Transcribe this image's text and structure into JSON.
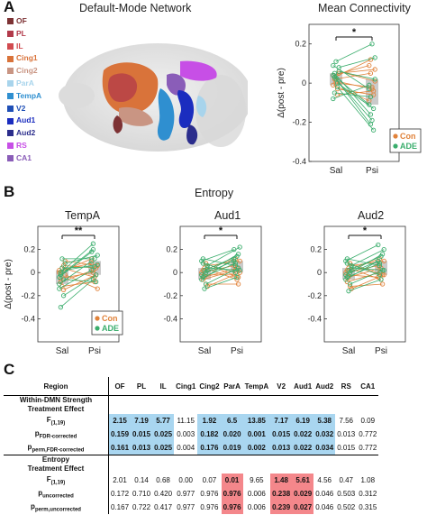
{
  "panels": {
    "A": "A",
    "B": "B",
    "C": "C"
  },
  "dmn": {
    "title": "Default-Mode Network",
    "regions": [
      {
        "label": "OF",
        "color": "#7d3234"
      },
      {
        "label": "PL",
        "color": "#b23a4a"
      },
      {
        "label": "IL",
        "color": "#d14a4f"
      },
      {
        "label": "Cing1",
        "color": "#d9733a"
      },
      {
        "label": "Cing2",
        "color": "#c99583"
      },
      {
        "label": "ParA",
        "color": "#a8d4ec"
      },
      {
        "label": "TempA",
        "color": "#2f8fd0"
      },
      {
        "label": "V2",
        "color": "#1f4fb6"
      },
      {
        "label": "Aud1",
        "color": "#1b2dbf"
      },
      {
        "label": "Aud2",
        "color": "#2b2d8c"
      },
      {
        "label": "RS",
        "color": "#c74fe6"
      },
      {
        "label": "CA1",
        "color": "#8a5db8"
      }
    ]
  },
  "legend_con": "Con",
  "legend_ade": "ADE",
  "colors": {
    "con": "#e0823a",
    "ade": "#3aad6c",
    "box": "#bdbdbd"
  },
  "entropy_title": "Entropy",
  "chart_data": [
    {
      "type": "scatter",
      "title": "Mean Connectivity",
      "ylabel": "Δ(post - pre)",
      "categories": [
        "Sal",
        "Psi"
      ],
      "ylim": [
        -0.4,
        0.3
      ],
      "yticks": [
        "0.2",
        "0",
        "-0.2",
        "-0.4"
      ],
      "significance": "*",
      "series": [
        {
          "name": "Con",
          "pairs": [
            [
              0.04,
              0.09
            ],
            [
              0.02,
              0.05
            ],
            [
              0.0,
              -0.02
            ],
            [
              -0.03,
              -0.06
            ],
            [
              0.06,
              0.01
            ],
            [
              -0.01,
              -0.09
            ],
            [
              0.03,
              0.12
            ],
            [
              0.01,
              -0.03
            ],
            [
              -0.06,
              -0.04
            ],
            [
              0.05,
              0.07
            ]
          ]
        },
        {
          "name": "ADE",
          "pairs": [
            [
              0.09,
              -0.03
            ],
            [
              0.05,
              -0.16
            ],
            [
              0.02,
              -0.19
            ],
            [
              -0.02,
              -0.24
            ],
            [
              0.08,
              0.13
            ],
            [
              0.04,
              -0.11
            ],
            [
              -0.05,
              -0.07
            ],
            [
              0.11,
              0.2
            ],
            [
              0.0,
              -0.13
            ],
            [
              0.06,
              0.02
            ],
            [
              -0.08,
              -0.01
            ],
            [
              0.03,
              -0.21
            ]
          ]
        }
      ]
    },
    {
      "type": "scatter",
      "title": "TempA",
      "ylabel": "Δ(post - pre)",
      "categories": [
        "Sal",
        "Psi"
      ],
      "ylim": [
        -0.6,
        0.4
      ],
      "yticks": [
        "0.2",
        "0",
        "-0.2",
        "-0.4"
      ],
      "significance": "**",
      "series": [
        {
          "name": "Con",
          "pairs": [
            [
              0.02,
              0.08
            ],
            [
              -0.05,
              0.0
            ],
            [
              -0.12,
              -0.08
            ],
            [
              0.06,
              0.04
            ],
            [
              -0.02,
              -0.14
            ],
            [
              0.0,
              0.12
            ],
            [
              -0.08,
              0.02
            ],
            [
              0.04,
              -0.04
            ],
            [
              -0.15,
              -0.02
            ],
            [
              0.1,
              0.06
            ]
          ]
        },
        {
          "name": "ADE",
          "pairs": [
            [
              -0.1,
              0.1
            ],
            [
              -0.02,
              0.2
            ],
            [
              0.04,
              0.05
            ],
            [
              -0.06,
              -0.08
            ],
            [
              0.08,
              0.15
            ],
            [
              -0.14,
              0.02
            ],
            [
              0.0,
              0.25
            ],
            [
              0.12,
              0.12
            ],
            [
              -0.2,
              -0.02
            ],
            [
              0.02,
              0.07
            ],
            [
              -0.04,
              0.18
            ],
            [
              -0.3,
              -0.06
            ]
          ]
        }
      ]
    },
    {
      "type": "scatter",
      "title": "Aud1",
      "ylabel": "",
      "categories": [
        "Sal",
        "Psi"
      ],
      "ylim": [
        -0.6,
        0.4
      ],
      "yticks": [
        "0.2",
        "0",
        "-0.2",
        "-0.4"
      ],
      "significance": "*",
      "series": [
        {
          "name": "Con",
          "pairs": [
            [
              0.0,
              0.06
            ],
            [
              -0.06,
              0.02
            ],
            [
              0.04,
              -0.06
            ],
            [
              -0.1,
              -0.1
            ],
            [
              0.06,
              0.1
            ],
            [
              -0.02,
              -0.02
            ],
            [
              0.02,
              0.12
            ],
            [
              -0.04,
              0.04
            ],
            [
              0.08,
              -0.04
            ],
            [
              -0.12,
              0.0
            ]
          ]
        },
        {
          "name": "ADE",
          "pairs": [
            [
              0.1,
              0.2
            ],
            [
              -0.04,
              0.08
            ],
            [
              0.02,
              0.14
            ],
            [
              -0.1,
              0.04
            ],
            [
              0.06,
              0.22
            ],
            [
              -0.02,
              0.1
            ],
            [
              0.12,
              0.06
            ],
            [
              -0.14,
              -0.04
            ],
            [
              0.0,
              0.16
            ],
            [
              0.04,
              0.02
            ],
            [
              -0.06,
              0.12
            ],
            [
              0.08,
              0.0
            ]
          ]
        }
      ]
    },
    {
      "type": "scatter",
      "title": "Aud2",
      "ylabel": "",
      "categories": [
        "Sal",
        "Psi"
      ],
      "ylim": [
        -0.6,
        0.4
      ],
      "yticks": [
        "0.2",
        "0",
        "-0.2",
        "-0.4"
      ],
      "significance": "*",
      "series": [
        {
          "name": "Con",
          "pairs": [
            [
              0.0,
              0.06
            ],
            [
              -0.08,
              0.0
            ],
            [
              0.04,
              -0.06
            ],
            [
              -0.12,
              -0.1
            ],
            [
              0.06,
              0.1
            ],
            [
              -0.02,
              -0.04
            ],
            [
              0.02,
              0.12
            ],
            [
              -0.04,
              0.04
            ],
            [
              0.08,
              -0.02
            ],
            [
              -0.14,
              -0.02
            ]
          ]
        },
        {
          "name": "ADE",
          "pairs": [
            [
              0.1,
              0.24
            ],
            [
              -0.04,
              0.08
            ],
            [
              0.02,
              0.14
            ],
            [
              -0.1,
              0.02
            ],
            [
              0.06,
              0.2
            ],
            [
              -0.02,
              0.1
            ],
            [
              0.12,
              0.06
            ],
            [
              -0.16,
              -0.06
            ],
            [
              0.0,
              0.16
            ],
            [
              0.04,
              0.02
            ],
            [
              -0.06,
              0.1
            ],
            [
              0.08,
              -0.02
            ]
          ]
        }
      ]
    }
  ],
  "table": {
    "columns": [
      "Region",
      "OF",
      "PL",
      "IL",
      "Cing1",
      "Cing2",
      "ParA",
      "TempA",
      "V2",
      "Aud1",
      "Aud2",
      "RS",
      "CA1"
    ],
    "sections": [
      {
        "title1": "Within-DMN Strength",
        "title2": "Treatment Effect",
        "rows": [
          {
            "stat": "F",
            "sub": "(1,19)",
            "values": [
              "2.15",
              "7.19",
              "5.77",
              "11.15",
              "1.92",
              "6.5",
              "13.85",
              "7.17",
              "6.19",
              "5.38",
              "7.56",
              "0.09"
            ]
          },
          {
            "stat": "p",
            "sub": "FDR-corrected",
            "values": [
              "0.159",
              "0.015",
              "0.025",
              "0.003",
              "0.182",
              "0.020",
              "0.001",
              "0.015",
              "0.022",
              "0.032",
              "0.013",
              "0.772"
            ]
          },
          {
            "stat": "p",
            "sub": "perm,FDR-corrected",
            "values": [
              "0.161",
              "0.013",
              "0.025",
              "0.004",
              "0.176",
              "0.019",
              "0.002",
              "0.013",
              "0.022",
              "0.034",
              "0.015",
              "0.772"
            ]
          }
        ]
      },
      {
        "title1": "Entropy",
        "title2": "Treatment Effect",
        "rows": [
          {
            "stat": "F",
            "sub": "(1,19)",
            "values": [
              "2.01",
              "0.14",
              "0.68",
              "0.00",
              "0.07",
              "0.01",
              "9.65",
              "1.48",
              "5.61",
              "4.56",
              "0.47",
              "1.08"
            ]
          },
          {
            "stat": "p",
            "sub": "uncorrected",
            "values": [
              "0.172",
              "0.710",
              "0.420",
              "0.977",
              "0.976",
              "0.976",
              "0.006",
              "0.238",
              "0.029",
              "0.046",
              "0.503",
              "0.312"
            ]
          },
          {
            "stat": "p",
            "sub": "perm,uncorrected",
            "values": [
              "0.167",
              "0.722",
              "0.417",
              "0.977",
              "0.976",
              "0.976",
              "0.006",
              "0.239",
              "0.027",
              "0.046",
              "0.502",
              "0.315"
            ]
          }
        ]
      }
    ]
  }
}
